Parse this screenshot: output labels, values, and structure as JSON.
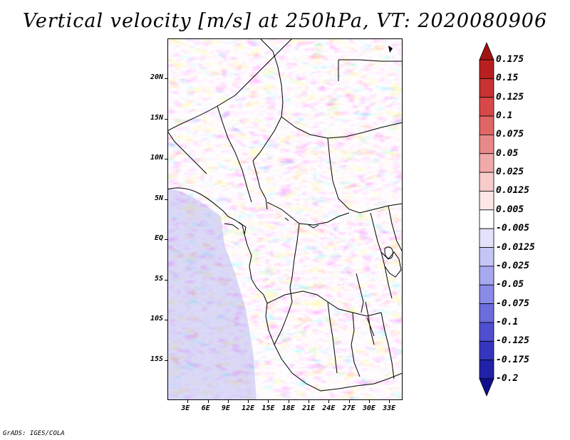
{
  "title": "Vertical velocity [m/s] at 250hPa, VT: 2020080906",
  "credit": "GrADS: IGES/COLA",
  "map": {
    "lon_range": [
      0,
      35
    ],
    "lat_range": [
      -20,
      25
    ],
    "lat_ticks": [
      {
        "value": 20,
        "label": "20N"
      },
      {
        "value": 15,
        "label": "15N"
      },
      {
        "value": 10,
        "label": "10N"
      },
      {
        "value": 5,
        "label": "5N"
      },
      {
        "value": 0,
        "label": "EQ"
      },
      {
        "value": -5,
        "label": "5S"
      },
      {
        "value": -10,
        "label": "10S"
      },
      {
        "value": -15,
        "label": "15S"
      }
    ],
    "lon_ticks": [
      {
        "value": 3,
        "label": "3E"
      },
      {
        "value": 6,
        "label": "6E"
      },
      {
        "value": 9,
        "label": "9E"
      },
      {
        "value": 12,
        "label": "12E"
      },
      {
        "value": 15,
        "label": "15E"
      },
      {
        "value": 18,
        "label": "18E"
      },
      {
        "value": 21,
        "label": "21E"
      },
      {
        "value": 24,
        "label": "24E"
      },
      {
        "value": 27,
        "label": "27E"
      },
      {
        "value": 30,
        "label": "30E"
      },
      {
        "value": 33,
        "label": "33E"
      }
    ]
  },
  "colorbar": {
    "labels": [
      "0.175",
      "0.15",
      "0.125",
      "0.1",
      "0.075",
      "0.05",
      "0.025",
      "0.0125",
      "0.005",
      "-0.005",
      "-0.0125",
      "-0.025",
      "-0.05",
      "-0.075",
      "-0.1",
      "-0.125",
      "-0.175",
      "-0.2"
    ],
    "colors": [
      "#a01414",
      "#b82020",
      "#c83232",
      "#d84848",
      "#e06666",
      "#e88888",
      "#f0aaaa",
      "#f8cccc",
      "#fde6e6",
      "#ffffff",
      "#e2e2fb",
      "#c6c6f5",
      "#a8a8ef",
      "#8a8ae8",
      "#6c6cdd",
      "#4f4fd0",
      "#3535c0",
      "#2222a8",
      "#10108c"
    ]
  }
}
